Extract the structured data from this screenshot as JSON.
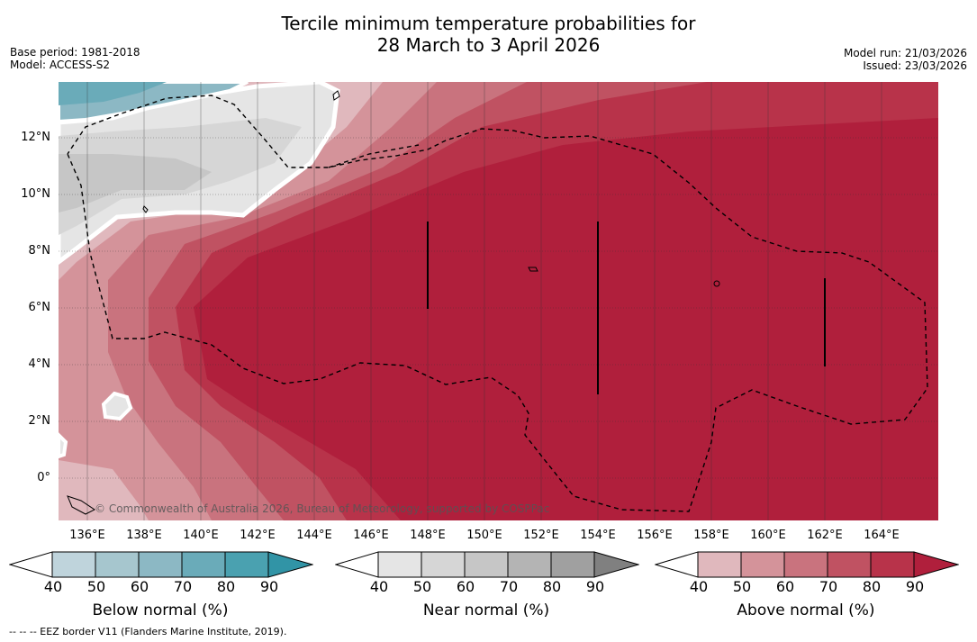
{
  "title": {
    "line1": "Tercile minimum temperature probabilities for",
    "line2": "28 March to 3 April 2026"
  },
  "meta": {
    "base_period": "Base period: 1981-2018",
    "model": "Model: ACCESS-S2",
    "model_run": "Model run: 21/03/2026",
    "issued": "Issued: 23/03/2026"
  },
  "map": {
    "lat_labels": [
      "12°N",
      "10°N",
      "8°N",
      "6°N",
      "4°N",
      "2°N",
      "0°"
    ],
    "lon_labels": [
      "136°E",
      "138°E",
      "140°E",
      "142°E",
      "144°E",
      "146°E",
      "148°E",
      "150°E",
      "152°E",
      "154°E",
      "156°E",
      "158°E",
      "160°E",
      "162°E",
      "164°E"
    ],
    "watermark": "© Commonwealth of Australia 2026, Bureau of Meteorology, supported by COSPPac"
  },
  "colorbars": [
    {
      "label": "Below normal (%)",
      "ticks": [
        "40",
        "50",
        "60",
        "70",
        "80",
        "90"
      ],
      "colors": [
        "#ffffff",
        "#bfd4dc",
        "#a6c6ce",
        "#8cb8c4",
        "#6aabb9",
        "#4aa1b0",
        "#3194a6"
      ]
    },
    {
      "label": "Near normal (%)",
      "ticks": [
        "40",
        "50",
        "60",
        "70",
        "80",
        "90"
      ],
      "colors": [
        "#ffffff",
        "#e5e5e5",
        "#d6d6d6",
        "#c6c6c6",
        "#b4b4b4",
        "#a0a0a0",
        "#808080"
      ]
    },
    {
      "label": "Above normal (%)",
      "ticks": [
        "40",
        "50",
        "60",
        "70",
        "80",
        "90"
      ],
      "colors": [
        "#ffffff",
        "#e0b8bd",
        "#d4939a",
        "#c9737e",
        "#c05262",
        "#b8334a",
        "#b01f3c"
      ]
    }
  ],
  "footnote": "--  --  -- EEZ border V11 (Flanders Marine Institute, 2019)."
}
